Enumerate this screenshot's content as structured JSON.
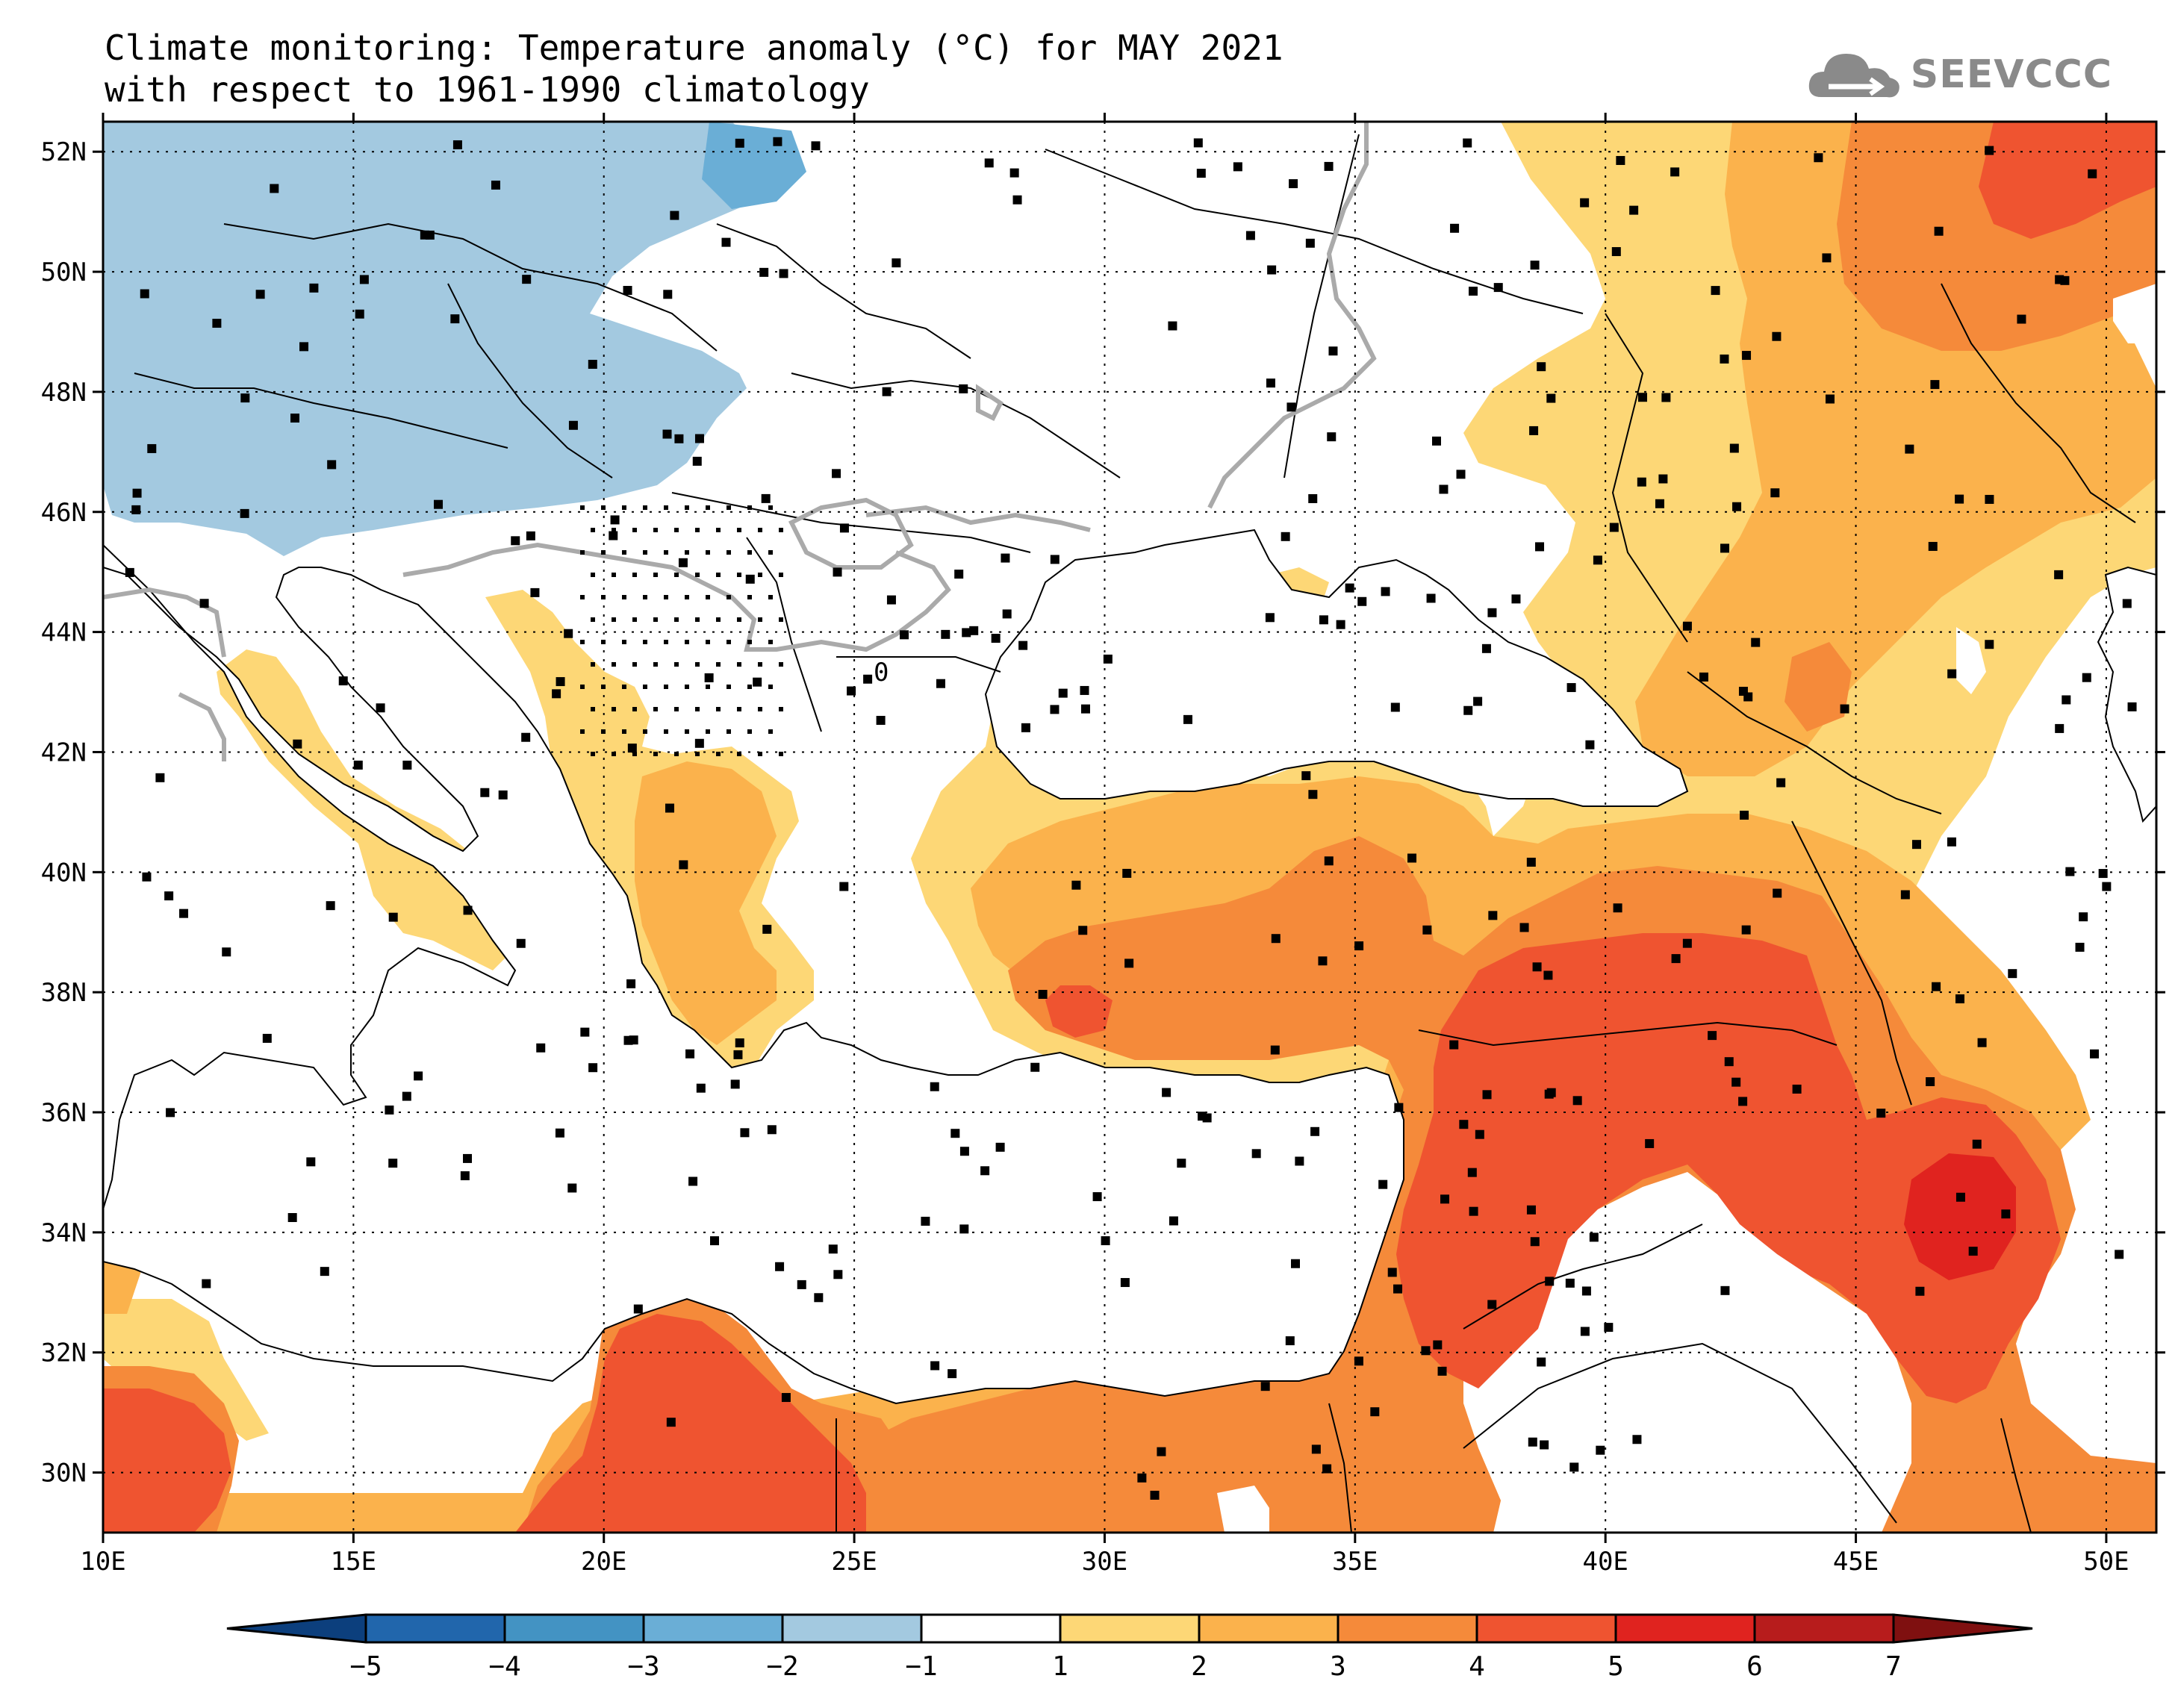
{
  "title": {
    "line1": "Climate monitoring: Temperature anomaly (°C) for MAY 2021",
    "line2": "with respect to 1961-1990 climatology"
  },
  "logo": {
    "text": "SEEVCCC",
    "icon": "cloud-icon"
  },
  "map": {
    "lon_range": [
      10,
      51
    ],
    "lat_range": [
      29,
      52.5
    ],
    "lon_ticks": [
      {
        "value": 10,
        "label": "10E"
      },
      {
        "value": 15,
        "label": "15E"
      },
      {
        "value": 20,
        "label": "20E"
      },
      {
        "value": 25,
        "label": "25E"
      },
      {
        "value": 30,
        "label": "30E"
      },
      {
        "value": 35,
        "label": "35E"
      },
      {
        "value": 40,
        "label": "40E"
      },
      {
        "value": 45,
        "label": "45E"
      },
      {
        "value": 50,
        "label": "50E"
      }
    ],
    "lat_ticks": [
      {
        "value": 52,
        "label": "52N"
      },
      {
        "value": 50,
        "label": "50N"
      },
      {
        "value": 48,
        "label": "48N"
      },
      {
        "value": 46,
        "label": "46N"
      },
      {
        "value": 44,
        "label": "44N"
      },
      {
        "value": 42,
        "label": "42N"
      },
      {
        "value": 40,
        "label": "40N"
      },
      {
        "value": 38,
        "label": "38N"
      },
      {
        "value": 36,
        "label": "36N"
      },
      {
        "value": 34,
        "label": "34N"
      },
      {
        "value": 32,
        "label": "32N"
      },
      {
        "value": 30,
        "label": "30N"
      }
    ],
    "grid": "dotted",
    "contour_label": "0"
  },
  "colorbar": {
    "labels": [
      "-5",
      "-4",
      "-3",
      "-2",
      "-1",
      "1",
      "2",
      "3",
      "4",
      "5",
      "6",
      "7"
    ],
    "colors": [
      "#0c3f7d",
      "#2166ac",
      "#4393c3",
      "#6aaed6",
      "#a3c9e0",
      "#ffffff",
      "#fdd776",
      "#fbb24c",
      "#f58a3a",
      "#ef5430",
      "#e0231f",
      "#b71c1c",
      "#7f1010"
    ]
  },
  "anomaly_colors": {
    "cold_2_3": "#6aaed6",
    "cold_1_2": "#a3c9e0",
    "warm_1_2": "#fdd776",
    "warm_2_3": "#fbb24c",
    "warm_3_4": "#f58a3a",
    "warm_4_5": "#ef5430",
    "warm_5_6": "#e0231f"
  }
}
